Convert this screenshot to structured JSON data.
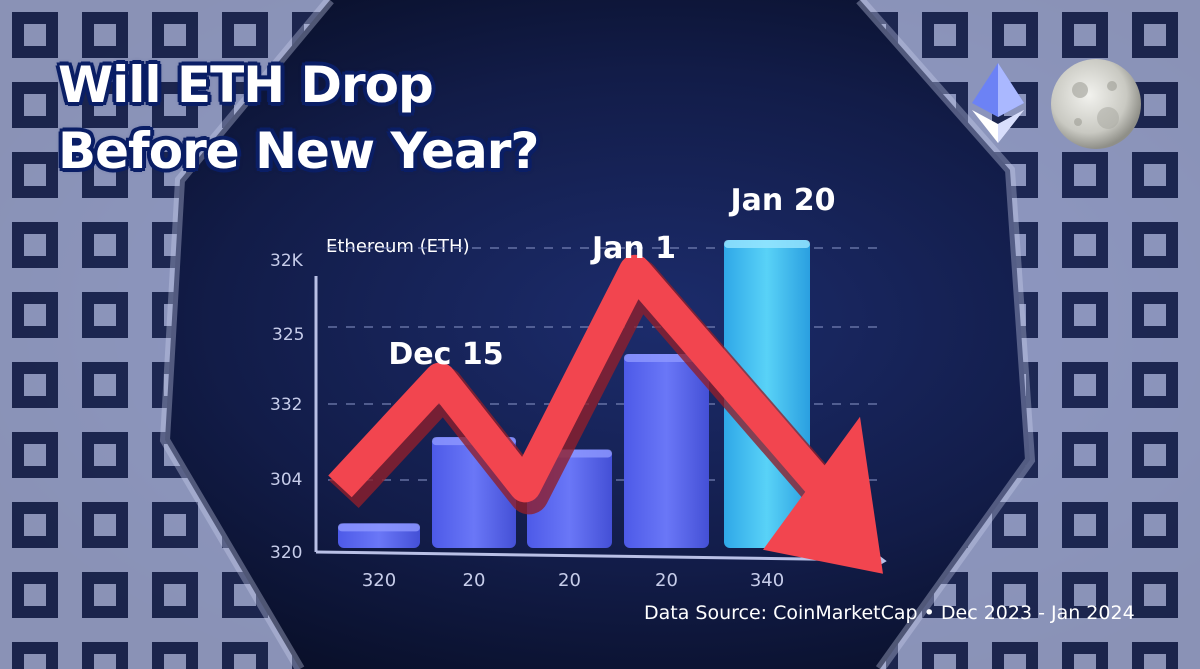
{
  "headline": {
    "line1": "Will ETH Drop",
    "line2": "Before New Year?"
  },
  "source_note": "Data Source: CoinMarketCap • Dec 2023 - Jan 2024",
  "icons": [
    "ethereum-logo-icon",
    "moon-icon"
  ],
  "colors": {
    "background": "#0d1533",
    "bar_blue": "#5865f2",
    "bar_highlight": "#3fc1f0",
    "trend_arrow": "#f2454f",
    "frame": "#a9b1d8"
  },
  "chart_data": {
    "type": "bar",
    "title": "Ethereum (ETH)",
    "y_tick_labels": [
      "32K",
      "325",
      "332",
      "304",
      "320"
    ],
    "categories": [
      "320",
      "20",
      "20",
      "20",
      "340"
    ],
    "values": [
      0.08,
      0.36,
      0.32,
      0.63,
      1.0
    ],
    "highlighted_bar": 4,
    "callouts": [
      "Dec 15",
      "Jan 1",
      "Jan 20"
    ],
    "trend_line": {
      "direction": "down",
      "points": [
        0.2,
        0.55,
        0.2,
        0.9,
        0.15
      ]
    },
    "grid": true,
    "gridline_style": "dashed"
  }
}
